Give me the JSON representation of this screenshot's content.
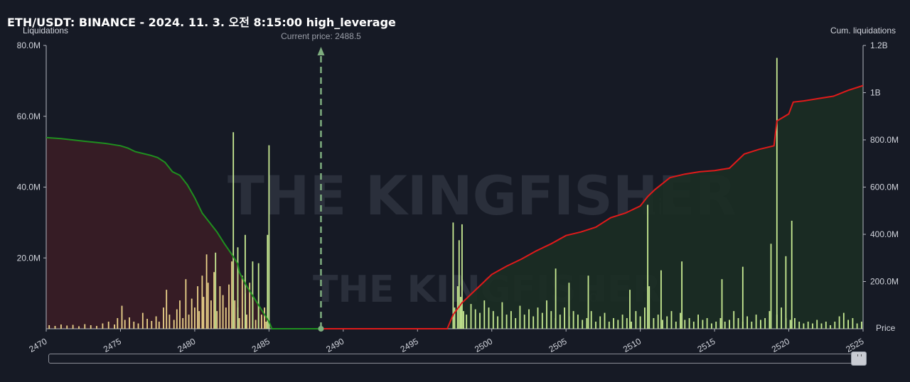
{
  "title": "ETH/USDT: BINANCE - 2024. 11. 3. 오전 8:15:00 high_leverage",
  "left_axis_label": "Liquidations",
  "right_axis_label": "Cum. liquidations",
  "price_label": "Price",
  "current_price_label": "Current price: 2488.5",
  "watermark": "THE KINGFISHER",
  "watermark_suffix": ".io",
  "colors": {
    "background": "#161a25",
    "bar_short": "#ecd38a",
    "bar_long": "#c9ec93",
    "cum_short_line": "#1f8f1f",
    "cum_long_line": "#e01a1a",
    "short_area": "#3a1d26",
    "long_area": "#1b2d24",
    "current_price_line": "#7fae7f"
  },
  "chart_data": {
    "type": "bar",
    "x_range": [
      2470,
      2525
    ],
    "x_ticks": [
      "2470",
      "2475",
      "2480",
      "2485",
      "2490",
      "2495",
      "2500",
      "2505",
      "2510",
      "2515",
      "2520",
      "2525"
    ],
    "y_left_range": [
      0,
      80
    ],
    "y_left_ticks": [
      "20.0M",
      "40.0M",
      "60.0M",
      "80.0M"
    ],
    "y_right_range": [
      0,
      1.2
    ],
    "y_right_ticks": [
      "200.0M",
      "400.0M",
      "600.0M",
      "800.0M",
      "1B",
      "1.2B"
    ],
    "current_price": 2488.5,
    "short_side_bars": [
      [
        2470.2,
        1.0
      ],
      [
        2470.6,
        0.8
      ],
      [
        2471.0,
        1.2
      ],
      [
        2471.4,
        0.9
      ],
      [
        2471.8,
        1.1
      ],
      [
        2472.2,
        0.7
      ],
      [
        2472.6,
        1.3
      ],
      [
        2473.0,
        1.0
      ],
      [
        2473.4,
        0.8
      ],
      [
        2473.8,
        1.5
      ],
      [
        2474.2,
        2.0
      ],
      [
        2474.6,
        1.2
      ],
      [
        2474.8,
        3.0
      ],
      [
        2475.1,
        6.5
      ],
      [
        2475.3,
        2.5
      ],
      [
        2475.6,
        3.2
      ],
      [
        2475.9,
        2.0
      ],
      [
        2476.2,
        1.5
      ],
      [
        2476.5,
        4.5
      ],
      [
        2476.8,
        2.8
      ],
      [
        2477.1,
        2.2
      ],
      [
        2477.4,
        3.5
      ],
      [
        2477.6,
        2.0
      ],
      [
        2477.9,
        6.0
      ],
      [
        2478.1,
        11.0
      ],
      [
        2478.3,
        4.0
      ],
      [
        2478.6,
        2.5
      ],
      [
        2478.8,
        5.5
      ],
      [
        2479.0,
        8.0
      ],
      [
        2479.2,
        3.0
      ],
      [
        2479.4,
        14.0
      ],
      [
        2479.6,
        4.0
      ],
      [
        2479.8,
        8.5
      ],
      [
        2480.0,
        6.0
      ],
      [
        2480.2,
        12.0
      ],
      [
        2480.3,
        5.0
      ],
      [
        2480.5,
        15.0
      ],
      [
        2480.6,
        9.0
      ],
      [
        2480.8,
        21.0
      ],
      [
        2480.9,
        13.0
      ],
      [
        2481.1,
        8.0
      ],
      [
        2481.3,
        16.0
      ],
      [
        2481.5,
        5.0
      ],
      [
        2481.7,
        12.0
      ],
      [
        2481.9,
        9.5
      ],
      [
        2482.1,
        6.0
      ],
      [
        2482.3,
        12.5
      ],
      [
        2482.5,
        19.0
      ],
      [
        2482.7,
        8.0
      ],
      [
        2482.9,
        6.0
      ],
      [
        2483.0,
        3.0
      ],
      [
        2483.2,
        15.0
      ],
      [
        2483.4,
        10.0
      ],
      [
        2483.5,
        4.0
      ],
      [
        2483.7,
        13.0
      ],
      [
        2483.9,
        8.0
      ],
      [
        2484.1,
        2.5
      ],
      [
        2484.3,
        7.0
      ],
      [
        2484.5,
        4.0
      ],
      [
        2484.7,
        6.0
      ],
      [
        2484.8,
        2.0
      ]
    ],
    "long_side_bars": [
      [
        2497.5,
        6.0
      ],
      [
        2497.7,
        12.0
      ],
      [
        2497.9,
        9.0
      ],
      [
        2498.1,
        5.0
      ],
      [
        2498.3,
        4.0
      ],
      [
        2498.6,
        7.0
      ],
      [
        2498.9,
        5.5
      ],
      [
        2499.2,
        4.5
      ],
      [
        2499.5,
        8.0
      ],
      [
        2499.8,
        6.0
      ],
      [
        2500.1,
        5.0
      ],
      [
        2500.4,
        3.5
      ],
      [
        2500.7,
        7.5
      ],
      [
        2501.0,
        4.0
      ],
      [
        2501.3,
        5.0
      ],
      [
        2501.6,
        3.0
      ],
      [
        2501.9,
        6.5
      ],
      [
        2502.2,
        4.0
      ],
      [
        2502.5,
        5.5
      ],
      [
        2502.8,
        3.5
      ],
      [
        2503.1,
        6.0
      ],
      [
        2503.4,
        4.5
      ],
      [
        2503.7,
        8.0
      ],
      [
        2504.0,
        5.0
      ],
      [
        2504.3,
        3.0
      ],
      [
        2504.6,
        4.0
      ],
      [
        2504.9,
        6.0
      ],
      [
        2505.2,
        3.5
      ],
      [
        2505.5,
        5.0
      ],
      [
        2505.8,
        4.0
      ],
      [
        2506.1,
        2.5
      ],
      [
        2506.4,
        3.0
      ],
      [
        2506.7,
        5.0
      ],
      [
        2507.0,
        2.0
      ],
      [
        2507.3,
        3.5
      ],
      [
        2507.6,
        4.5
      ],
      [
        2507.9,
        2.0
      ],
      [
        2508.2,
        3.0
      ],
      [
        2508.5,
        2.5
      ],
      [
        2508.8,
        4.0
      ],
      [
        2509.1,
        3.0
      ],
      [
        2509.4,
        2.0
      ],
      [
        2509.7,
        5.0
      ],
      [
        2510.0,
        3.5
      ],
      [
        2510.3,
        6.0
      ],
      [
        2510.6,
        12.0
      ],
      [
        2510.9,
        3.0
      ],
      [
        2511.2,
        4.0
      ],
      [
        2511.5,
        2.5
      ],
      [
        2511.8,
        3.5
      ],
      [
        2512.1,
        5.0
      ],
      [
        2512.4,
        2.0
      ],
      [
        2512.7,
        4.5
      ],
      [
        2513.0,
        2.5
      ],
      [
        2513.3,
        3.0
      ],
      [
        2513.6,
        2.0
      ],
      [
        2513.9,
        4.0
      ],
      [
        2514.2,
        2.5
      ],
      [
        2514.5,
        3.0
      ],
      [
        2514.8,
        1.5
      ],
      [
        2515.1,
        2.0
      ],
      [
        2515.4,
        3.0
      ],
      [
        2515.7,
        2.0
      ],
      [
        2516.0,
        2.5
      ],
      [
        2516.3,
        5.0
      ],
      [
        2516.6,
        3.0
      ],
      [
        2516.9,
        2.0
      ],
      [
        2517.2,
        3.5
      ],
      [
        2517.5,
        2.0
      ],
      [
        2517.8,
        4.0
      ],
      [
        2518.1,
        2.5
      ],
      [
        2518.4,
        3.0
      ],
      [
        2518.7,
        5.0
      ],
      [
        2519.2,
        4.0
      ],
      [
        2519.5,
        6.0
      ],
      [
        2519.8,
        3.0
      ],
      [
        2520.1,
        2.5
      ],
      [
        2520.4,
        3.0
      ],
      [
        2520.7,
        2.0
      ],
      [
        2521.0,
        1.5
      ],
      [
        2521.3,
        2.0
      ],
      [
        2521.6,
        1.5
      ],
      [
        2521.9,
        2.5
      ],
      [
        2522.2,
        1.5
      ],
      [
        2522.5,
        2.0
      ],
      [
        2522.8,
        1.0
      ],
      [
        2523.1,
        2.0
      ],
      [
        2523.4,
        3.5
      ],
      [
        2523.7,
        4.5
      ],
      [
        2524.0,
        2.5
      ],
      [
        2524.3,
        3.0
      ],
      [
        2524.6,
        1.5
      ],
      [
        2524.9,
        2.0
      ]
    ],
    "long_side_tall_bars": [
      [
        2497.4,
        30.0
      ],
      [
        2497.8,
        25.0
      ],
      [
        2498.0,
        29.5
      ],
      [
        2504.3,
        17.0
      ],
      [
        2506.5,
        15.0
      ],
      [
        2510.5,
        35.0
      ],
      [
        2511.4,
        16.5
      ],
      [
        2512.8,
        19.0
      ],
      [
        2518.8,
        24.0
      ],
      [
        2519.2,
        76.5
      ],
      [
        2519.8,
        20.5
      ],
      [
        2520.2,
        30.5
      ],
      [
        2516.9,
        17.5
      ],
      [
        2515.5,
        14.0
      ],
      [
        2509.3,
        11.0
      ],
      [
        2505.2,
        13.0
      ]
    ],
    "short_side_tall_bars": [
      [
        2482.6,
        55.5
      ],
      [
        2483.4,
        26.5
      ],
      [
        2483.9,
        19.0
      ],
      [
        2484.3,
        18.5
      ],
      [
        2485.0,
        51.8
      ],
      [
        2484.9,
        26.5
      ],
      [
        2482.9,
        23.0
      ],
      [
        2481.4,
        21.5
      ]
    ],
    "cum_short": [
      [
        2470.0,
        810
      ],
      [
        2471.0,
        805
      ],
      [
        2472.5,
        795
      ],
      [
        2474.0,
        785
      ],
      [
        2475.0,
        775
      ],
      [
        2475.5,
        765
      ],
      [
        2476.0,
        750
      ],
      [
        2477.0,
        735
      ],
      [
        2477.5,
        725
      ],
      [
        2478.0,
        705
      ],
      [
        2478.5,
        665
      ],
      [
        2479.0,
        650
      ],
      [
        2479.5,
        610
      ],
      [
        2480.0,
        555
      ],
      [
        2480.5,
        490
      ],
      [
        2481.0,
        450
      ],
      [
        2481.5,
        410
      ],
      [
        2482.0,
        360
      ],
      [
        2482.5,
        315
      ],
      [
        2482.9,
        275
      ],
      [
        2483.0,
        240
      ],
      [
        2483.5,
        180
      ],
      [
        2484.0,
        130
      ],
      [
        2484.5,
        80
      ],
      [
        2485.0,
        30
      ],
      [
        2485.2,
        0
      ],
      [
        2488.5,
        0
      ]
    ],
    "cum_long": [
      [
        2488.5,
        0
      ],
      [
        2497.0,
        0
      ],
      [
        2497.4,
        60
      ],
      [
        2498.0,
        110
      ],
      [
        2499.0,
        170
      ],
      [
        2500.0,
        230
      ],
      [
        2501.0,
        265
      ],
      [
        2502.0,
        295
      ],
      [
        2503.0,
        330
      ],
      [
        2504.0,
        360
      ],
      [
        2505.0,
        395
      ],
      [
        2506.0,
        410
      ],
      [
        2507.0,
        430
      ],
      [
        2508.0,
        470
      ],
      [
        2509.0,
        490
      ],
      [
        2510.0,
        520
      ],
      [
        2510.5,
        560
      ],
      [
        2511.0,
        590
      ],
      [
        2512.0,
        640
      ],
      [
        2513.0,
        655
      ],
      [
        2514.0,
        665
      ],
      [
        2515.0,
        670
      ],
      [
        2516.0,
        680
      ],
      [
        2517.0,
        740
      ],
      [
        2518.0,
        760
      ],
      [
        2519.0,
        775
      ],
      [
        2519.2,
        880
      ],
      [
        2520.0,
        910
      ],
      [
        2520.3,
        960
      ],
      [
        2521.0,
        965
      ],
      [
        2522.0,
        975
      ],
      [
        2523.0,
        985
      ],
      [
        2524.0,
        1010
      ],
      [
        2525.0,
        1030
      ]
    ]
  }
}
